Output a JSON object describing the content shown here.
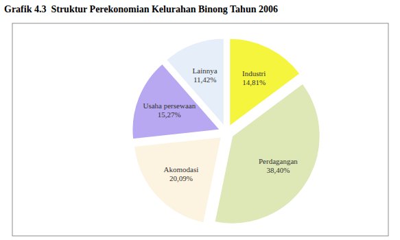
{
  "chart_data": {
    "type": "pie",
    "title": "Grafik 4.3  Struktur Perekonomian Kelurahan Binong Tahun 2006",
    "categories": [
      "Industri",
      "Perdagangan",
      "Akomodasi",
      "Usaha persewaan",
      "Lainnya"
    ],
    "values": [
      14.81,
      38.4,
      20.09,
      15.27,
      11.42
    ],
    "value_labels": [
      "14,81%",
      "38,40%",
      "20,09%",
      "15,27%",
      "11,42%"
    ],
    "colors": [
      "#f4f53c",
      "#dde8b6",
      "#fcf3e1",
      "#b8a8f2",
      "#e6eefa"
    ],
    "data_labels": true
  }
}
